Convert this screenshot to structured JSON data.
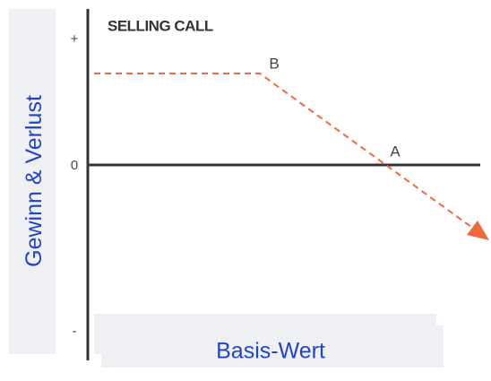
{
  "title": "SELLING CALL",
  "axis": {
    "plus": "+",
    "zero": "0",
    "minus": "-"
  },
  "points": {
    "b": "B",
    "a": "A"
  },
  "y_label": "Gewinn & Verlust",
  "x_label": "Basis-Wert"
}
